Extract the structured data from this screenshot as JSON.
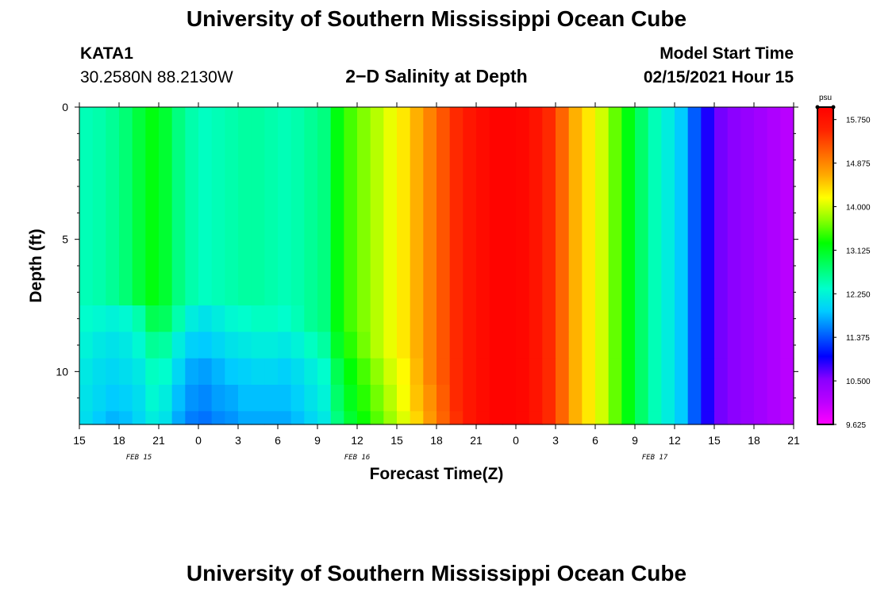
{
  "header": {
    "title": "University of Southern Mississippi Ocean Cube",
    "station": "KATA1",
    "coordinates": "30.2580N 88.2130W",
    "subtitle": "2−D Salinity at Depth",
    "model_start_label": "Model Start Time",
    "model_start_value": "02/15/2021 Hour 15"
  },
  "footer": {
    "title": "University of Southern Mississippi Ocean Cube"
  },
  "chart_data": {
    "type": "heatmap",
    "title": "2-D Salinity at Depth",
    "xlabel": "Forecast Time(Z)",
    "ylabel": "Depth (ft)",
    "units": "psu",
    "x_hours_since_start": [
      0,
      3,
      6,
      9,
      12,
      15,
      18,
      21,
      24,
      27,
      30,
      33,
      36,
      39,
      42,
      45,
      48,
      51,
      54
    ],
    "x_tick_labels": [
      "15",
      "18",
      "21",
      "0",
      "3",
      "6",
      "9",
      "12",
      "15",
      "18",
      "21",
      "0",
      "3",
      "6",
      "9",
      "12",
      "15",
      "18",
      "21"
    ],
    "date_labels": [
      {
        "text": "FEB 15",
        "hour": 4.5
      },
      {
        "text": "FEB 16",
        "hour": 21
      },
      {
        "text": "FEB 17",
        "hour": 43.5
      }
    ],
    "xlim": [
      0,
      54
    ],
    "ylim": [
      0,
      12
    ],
    "y_ticks": [
      0,
      5,
      10
    ],
    "y_minor_ticks": [
      1,
      2,
      3,
      4,
      6,
      7,
      8,
      9,
      11
    ],
    "color_min": 9.625,
    "color_max": 16.0,
    "colorbar_ticks": [
      9.625,
      10.5,
      11.375,
      12.25,
      13.125,
      14.0,
      14.875,
      15.75
    ],
    "colorbar_tick_labels": [
      "9.625",
      "10.500",
      "11.375",
      "12.250",
      "13.125",
      "14.000",
      "14.875",
      "15.750"
    ],
    "depth_levels": [
      0,
      7.5,
      8.5,
      9.5,
      10.5,
      11.5,
      12
    ],
    "time_axis_hours": [
      0,
      1,
      2,
      3,
      4,
      5,
      6,
      7,
      8,
      9,
      10,
      11,
      12,
      13,
      14,
      15,
      16,
      17,
      18,
      19,
      20,
      21,
      22,
      23,
      24,
      25,
      26,
      27,
      28,
      29,
      30,
      31,
      32,
      33,
      34,
      35,
      36,
      37,
      38,
      39,
      40,
      41,
      42,
      43,
      44,
      45,
      46,
      47,
      48,
      49,
      50,
      51,
      52,
      53,
      54
    ],
    "salinity_surface_psu": [
      12.45,
      12.5,
      12.6,
      12.75,
      13.0,
      13.2,
      13.05,
      12.7,
      12.5,
      12.4,
      12.45,
      12.5,
      12.55,
      12.55,
      12.5,
      12.45,
      12.5,
      12.6,
      12.7,
      13.2,
      13.5,
      13.7,
      13.9,
      14.1,
      14.3,
      14.6,
      14.9,
      15.2,
      15.5,
      15.7,
      15.85,
      15.95,
      15.95,
      15.9,
      15.75,
      15.5,
      15.1,
      14.6,
      14.3,
      14.0,
      13.6,
      13.2,
      12.8,
      12.45,
      12.2,
      11.9,
      11.4,
      10.9,
      10.6,
      10.5,
      10.4,
      10.3,
      10.2,
      10.1,
      10.0
    ],
    "bottom_freshening_psu": [
      [
        0,
        0,
        0,
        0,
        0,
        0,
        0,
        0,
        0,
        0,
        0,
        0,
        0,
        0,
        0,
        0,
        0,
        0,
        0,
        0,
        0,
        0,
        0,
        0,
        0,
        0,
        0,
        0,
        0,
        0,
        0,
        0,
        0,
        0,
        0,
        0,
        0,
        0,
        0,
        0,
        0,
        0,
        0,
        0,
        0,
        0,
        0,
        0,
        0,
        0,
        0,
        0,
        0,
        0,
        0
      ],
      [
        0.1,
        0.2,
        0.35,
        0.45,
        0.5,
        0.3,
        0.2,
        0.2,
        0.3,
        0.3,
        0.25,
        0.2,
        0.2,
        0.15,
        0.1,
        0.1,
        0.05,
        0,
        0,
        0,
        0,
        0,
        0,
        0,
        0,
        0,
        0,
        0,
        0,
        0,
        0,
        0,
        0,
        0,
        0,
        0,
        0,
        0,
        0,
        0,
        0,
        0,
        0,
        0,
        0,
        0,
        0,
        0,
        0,
        0,
        0,
        0,
        0,
        0,
        0
      ],
      [
        0.2,
        0.35,
        0.5,
        0.6,
        0.7,
        0.6,
        0.5,
        0.5,
        0.55,
        0.5,
        0.45,
        0.4,
        0.4,
        0.35,
        0.3,
        0.3,
        0.25,
        0.2,
        0.15,
        0.1,
        0.1,
        0.05,
        0,
        0,
        0,
        0,
        0,
        0,
        0,
        0,
        0,
        0,
        0,
        0,
        0,
        0,
        0,
        0,
        0,
        0,
        0,
        0,
        0,
        0,
        0,
        0,
        0,
        0,
        0,
        0,
        0,
        0,
        0,
        0,
        0
      ],
      [
        0.3,
        0.45,
        0.6,
        0.7,
        0.85,
        0.8,
        0.7,
        0.7,
        0.75,
        0.7,
        0.65,
        0.6,
        0.6,
        0.55,
        0.5,
        0.5,
        0.45,
        0.4,
        0.35,
        0.3,
        0.25,
        0.2,
        0.15,
        0.1,
        0.1,
        0.05,
        0,
        0,
        0,
        0,
        0,
        0,
        0,
        0,
        0,
        0,
        0,
        0,
        0,
        0,
        0,
        0,
        0,
        0,
        0,
        0,
        0,
        0,
        0,
        0,
        0,
        0,
        0,
        0,
        0
      ],
      [
        0.35,
        0.5,
        0.7,
        0.8,
        0.95,
        0.9,
        0.85,
        0.85,
        0.85,
        0.8,
        0.75,
        0.75,
        0.7,
        0.7,
        0.65,
        0.6,
        0.55,
        0.5,
        0.45,
        0.4,
        0.35,
        0.3,
        0.25,
        0.2,
        0.15,
        0.1,
        0.1,
        0.05,
        0,
        0,
        0,
        0,
        0,
        0,
        0,
        0,
        0,
        0,
        0,
        0,
        0,
        0,
        0,
        0,
        0,
        0,
        0,
        0,
        0,
        0,
        0,
        0,
        0,
        0,
        0
      ],
      [
        0.4,
        0.6,
        0.8,
        0.9,
        1.0,
        1.0,
        0.95,
        0.95,
        0.95,
        0.9,
        0.85,
        0.85,
        0.8,
        0.8,
        0.75,
        0.7,
        0.65,
        0.6,
        0.55,
        0.5,
        0.45,
        0.4,
        0.35,
        0.3,
        0.25,
        0.2,
        0.15,
        0.1,
        0.05,
        0,
        0,
        0,
        0,
        0,
        0,
        0,
        0,
        0,
        0,
        0,
        0,
        0,
        0,
        0,
        0,
        0,
        0,
        0,
        0,
        0,
        0,
        0,
        0,
        0,
        0
      ]
    ]
  },
  "colors": {
    "colormap": [
      "#ff00ff",
      "#bb00ff",
      "#8800ff",
      "#0000ff",
      "#0066ff",
      "#00ccff",
      "#00ffcc",
      "#00ff66",
      "#00ff00",
      "#88ff00",
      "#ffff00",
      "#ffaa00",
      "#ff6600",
      "#ff2200",
      "#ff0000"
    ],
    "axis": "#000000"
  }
}
